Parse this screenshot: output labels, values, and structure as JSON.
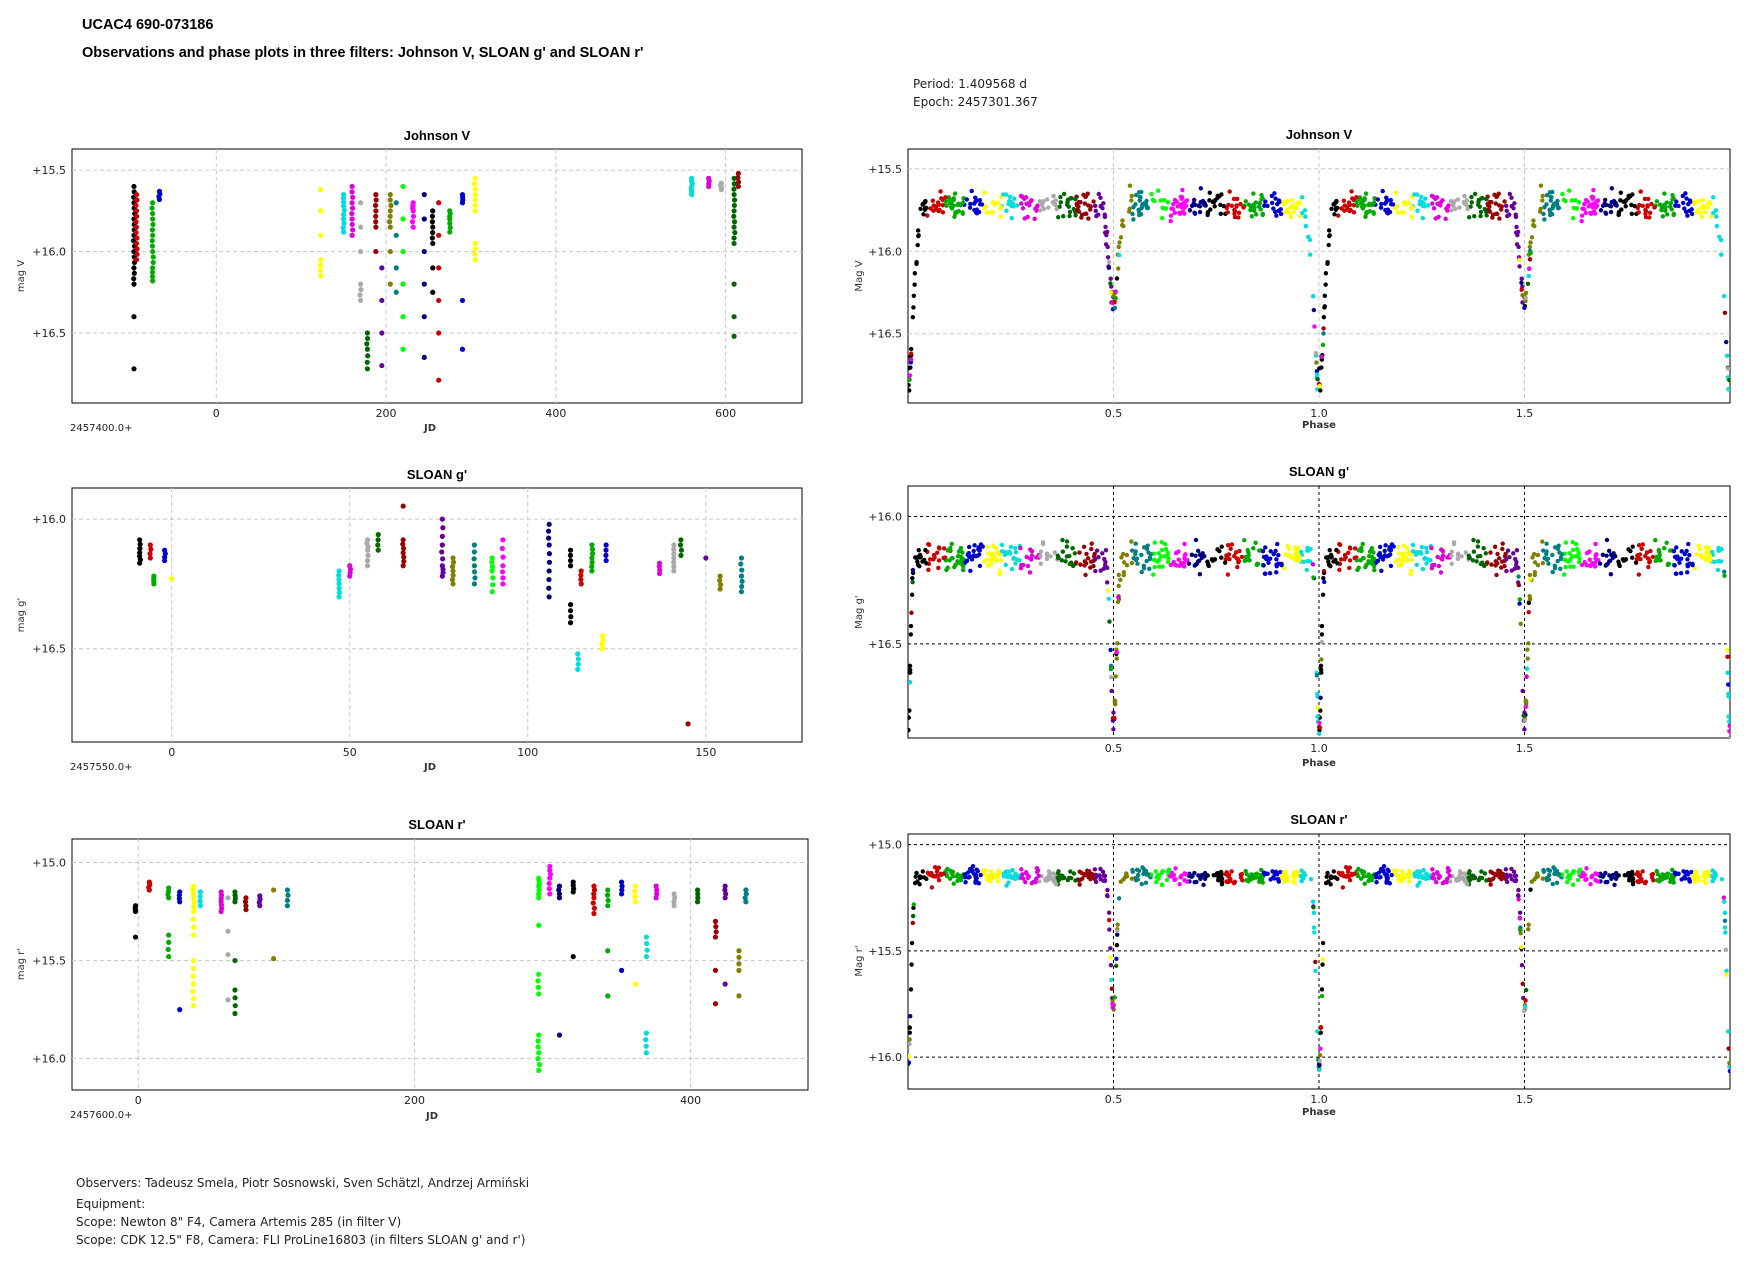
{
  "header": {
    "title": "UCAC4 690-073186",
    "subtitle": "Observations and phase plots in three filters: Johnson V, SLOAN g' and SLOAN r'"
  },
  "phase_info": {
    "period": "Period: 1.409568 d",
    "epoch": "Epoch: 2457301.367"
  },
  "footer": {
    "observers": "Observers: Tadeusz Smela, Piotr Sosnowski, Sven Schätzl, Andrzej Armiński",
    "equipment": "Equipment:",
    "scope1": "Scope: Newton 8\" F4, Camera Artemis 285  (in filter V)",
    "scope2": "Scope: CDK 12.5\" F8, Camera: FLI ProLine16803 (in filters SLOAN g' and r')"
  },
  "colors": {
    "palette": [
      "#000000",
      "#cc0000",
      "#00aa00",
      "#0000cc",
      "#ffff00",
      "#00dddd",
      "#dd00dd",
      "#aaaaaa",
      "#006600",
      "#990000",
      "#660099",
      "#808000",
      "#008080",
      "#00ff00",
      "#ff00ff",
      "#000080"
    ],
    "frame": "#000000",
    "grid": "#c8c8c8",
    "phase_grid": "#000000"
  },
  "chart_data": [
    {
      "id": "jd-v",
      "type": "scatter",
      "title": "Johnson V",
      "xlabel": "JD",
      "ylabel": "mag V",
      "x_offset_label": "2457400.0+",
      "xlim": [
        -170,
        690
      ],
      "ylim": [
        16.93,
        15.37
      ],
      "xticks": [
        0,
        200,
        400,
        600
      ],
      "yticks": [
        15.5,
        16.0,
        16.5
      ],
      "ytick_labels": [
        "+15.5",
        "+16.0",
        "+16.5"
      ],
      "series": [
        {
          "x": -97,
          "mag": [
            15.6,
            15.7,
            15.8,
            15.9,
            16.0,
            16.1,
            16.2,
            16.4,
            16.72
          ]
        },
        {
          "x": -94,
          "mag": [
            15.65,
            15.75,
            15.85,
            15.95,
            16.05
          ]
        },
        {
          "x": -75,
          "mag": [
            15.7,
            15.8,
            15.9,
            16.0,
            16.1,
            16.18
          ]
        },
        {
          "x": -67,
          "mag": [
            15.63,
            15.68
          ]
        },
        {
          "x": 123,
          "mag": [
            15.62,
            15.75,
            15.9,
            16.05,
            16.15
          ]
        },
        {
          "x": 150,
          "mag": [
            15.65,
            15.72,
            15.8,
            15.88
          ]
        },
        {
          "x": 160,
          "mag": [
            15.6,
            15.7,
            15.8,
            15.9
          ]
        },
        {
          "x": 170,
          "mag": [
            15.7,
            15.85,
            16.0,
            16.2,
            16.3
          ]
        },
        {
          "x": 178,
          "mag": [
            16.5,
            16.6,
            16.72
          ]
        },
        {
          "x": 188,
          "mag": [
            15.65,
            15.75,
            15.85,
            16.0
          ]
        },
        {
          "x": 195,
          "mag": [
            16.1,
            16.3,
            16.5,
            16.7
          ]
        },
        {
          "x": 205,
          "mag": [
            15.65,
            15.75,
            15.85,
            16.0,
            16.2
          ]
        },
        {
          "x": 212,
          "mag": [
            15.7,
            15.9,
            16.1,
            16.25
          ]
        },
        {
          "x": 220,
          "mag": [
            15.6,
            15.8,
            16.0,
            16.2,
            16.4,
            16.6
          ]
        },
        {
          "x": 232,
          "mag": [
            15.7,
            15.75,
            15.85
          ]
        },
        {
          "x": 245,
          "mag": [
            15.65,
            15.8,
            16.0,
            16.2,
            16.4,
            16.65
          ]
        },
        {
          "x": 255,
          "mag": [
            15.75,
            15.85,
            15.95,
            16.1,
            16.25
          ]
        },
        {
          "x": 262,
          "mag": [
            15.7,
            15.9,
            16.1,
            16.3,
            16.5,
            16.79
          ]
        },
        {
          "x": 275,
          "mag": [
            15.75,
            15.8,
            15.88
          ]
        },
        {
          "x": 290,
          "mag": [
            15.65,
            15.7,
            16.3,
            16.6
          ]
        },
        {
          "x": 305,
          "mag": [
            15.55,
            15.65,
            15.75,
            15.95,
            16.05
          ]
        },
        {
          "x": 560,
          "mag": [
            15.55,
            15.6,
            15.65
          ]
        },
        {
          "x": 580,
          "mag": [
            15.55,
            15.6
          ]
        },
        {
          "x": 595,
          "mag": [
            15.58,
            15.62
          ]
        },
        {
          "x": 610,
          "mag": [
            15.55,
            15.65,
            15.75,
            15.85,
            15.95,
            16.2,
            16.4,
            16.52
          ]
        },
        {
          "x": 615,
          "mag": [
            15.52,
            15.6
          ]
        }
      ]
    },
    {
      "id": "ph-v",
      "type": "scatter",
      "title": "Johnson  V",
      "xlabel": "Phase",
      "ylabel": "Mag V",
      "xlim": [
        0.0,
        2.0
      ],
      "ylim": [
        16.92,
        15.38
      ],
      "xticks": [
        0.5,
        1.0,
        1.5
      ],
      "xtick_labels": [
        "0.5",
        "1.0",
        "1.5"
      ],
      "yticks": [
        15.5,
        16.0,
        16.5
      ],
      "ytick_labels": [
        "+15.5",
        "+16.0",
        "+16.5"
      ],
      "model": {
        "base": 15.72,
        "primary_min": 16.8,
        "secondary_min": 16.32,
        "primary_width": 0.018,
        "secondary_width": 0.016,
        "scatter": 0.08
      }
    },
    {
      "id": "jd-g",
      "type": "scatter",
      "title": "SLOAN g'",
      "xlabel": "JD",
      "ylabel": "mag g'",
      "x_offset_label": "2457550.0+",
      "xlim": [
        -28,
        177
      ],
      "ylim": [
        16.86,
        15.88
      ],
      "xticks": [
        0,
        50,
        100,
        150
      ],
      "yticks": [
        16.0,
        16.5
      ],
      "ytick_labels": [
        "+16.0",
        "+16.5"
      ],
      "series": [
        {
          "x": -9,
          "mag": [
            16.08,
            16.13,
            16.17
          ]
        },
        {
          "x": -6,
          "mag": [
            16.1,
            16.15
          ]
        },
        {
          "x": -5,
          "mag": [
            16.22,
            16.25
          ]
        },
        {
          "x": -2,
          "mag": [
            16.12,
            16.16
          ]
        },
        {
          "x": 0,
          "mag": [
            16.23
          ]
        },
        {
          "x": 47,
          "mag": [
            16.2,
            16.25,
            16.3
          ]
        },
        {
          "x": 50,
          "mag": [
            16.18,
            16.22
          ]
        },
        {
          "x": 55,
          "mag": [
            16.08,
            16.12,
            16.18
          ]
        },
        {
          "x": 58,
          "mag": [
            16.06,
            16.12
          ]
        },
        {
          "x": 65,
          "mag": [
            15.95,
            16.08,
            16.13,
            16.18
          ]
        },
        {
          "x": 76,
          "mag": [
            16.0,
            16.1,
            16.18,
            16.22
          ]
        },
        {
          "x": 79,
          "mag": [
            16.15,
            16.2,
            16.25
          ]
        },
        {
          "x": 85,
          "mag": [
            16.1,
            16.18,
            16.25
          ]
        },
        {
          "x": 90,
          "mag": [
            16.15,
            16.2,
            16.28
          ]
        },
        {
          "x": 93,
          "mag": [
            16.08,
            16.18,
            16.25
          ]
        },
        {
          "x": 106,
          "mag": [
            16.02,
            16.1,
            16.2,
            16.3
          ]
        },
        {
          "x": 112,
          "mag": [
            16.12,
            16.18,
            16.33,
            16.4
          ]
        },
        {
          "x": 115,
          "mag": [
            16.2,
            16.25
          ]
        },
        {
          "x": 118,
          "mag": [
            16.1,
            16.15,
            16.2
          ]
        },
        {
          "x": 122,
          "mag": [
            16.1,
            16.16
          ]
        },
        {
          "x": 121,
          "mag": [
            16.45,
            16.5
          ]
        },
        {
          "x": 114,
          "mag": [
            16.52,
            16.58
          ]
        },
        {
          "x": 137,
          "mag": [
            16.17,
            16.21
          ]
        },
        {
          "x": 141,
          "mag": [
            16.1,
            16.15,
            16.2
          ]
        },
        {
          "x": 143,
          "mag": [
            16.08,
            16.14
          ]
        },
        {
          "x": 145,
          "mag": [
            16.79
          ]
        },
        {
          "x": 150,
          "mag": [
            16.15
          ]
        },
        {
          "x": 154,
          "mag": [
            16.22,
            16.27
          ]
        },
        {
          "x": 160,
          "mag": [
            16.15,
            16.22,
            16.28
          ]
        }
      ]
    },
    {
      "id": "ph-g",
      "type": "scatter",
      "title": "SLOAN  g'",
      "xlabel": "Phase",
      "ylabel": "Mag  g'",
      "xlim": [
        0.0,
        2.0
      ],
      "ylim": [
        16.87,
        15.88
      ],
      "xticks": [
        0.5,
        1.0,
        1.5
      ],
      "xtick_labels": [
        "0.5",
        "1.0",
        "1.5"
      ],
      "yticks": [
        16.0,
        16.5
      ],
      "ytick_labels": [
        "+16.0",
        "+16.5"
      ],
      "model": {
        "base": 16.16,
        "primary_min": 16.85,
        "secondary_min": 16.8,
        "primary_width": 0.008,
        "secondary_width": 0.01,
        "scatter": 0.06
      }
    },
    {
      "id": "jd-r",
      "type": "scatter",
      "title": "SLOAN r'",
      "xlabel": "JD",
      "ylabel": "mag r'",
      "x_offset_label": "2457600.0+",
      "xlim": [
        -48,
        485
      ],
      "ylim": [
        16.16,
        14.88
      ],
      "xticks": [
        0,
        200,
        400
      ],
      "yticks": [
        15.0,
        15.5,
        16.0
      ],
      "ytick_labels": [
        "+15.0",
        "+15.5",
        "+16.0"
      ],
      "series": [
        {
          "x": -2,
          "mag": [
            15.22,
            15.25,
            15.38
          ]
        },
        {
          "x": 8,
          "mag": [
            15.1,
            15.14
          ]
        },
        {
          "x": 22,
          "mag": [
            15.13,
            15.18,
            15.37,
            15.48
          ]
        },
        {
          "x": 30,
          "mag": [
            15.15,
            15.2,
            15.75
          ]
        },
        {
          "x": 40,
          "mag": [
            15.12,
            15.18,
            15.25,
            15.37,
            15.5,
            15.62,
            15.73
          ]
        },
        {
          "x": 45,
          "mag": [
            15.15,
            15.22
          ]
        },
        {
          "x": 60,
          "mag": [
            15.15,
            15.2,
            15.25
          ]
        },
        {
          "x": 65,
          "mag": [
            15.18,
            15.35,
            15.47,
            15.7
          ]
        },
        {
          "x": 70,
          "mag": [
            15.15,
            15.2,
            15.5,
            15.65,
            15.77
          ]
        },
        {
          "x": 78,
          "mag": [
            15.18,
            15.24
          ]
        },
        {
          "x": 88,
          "mag": [
            15.17,
            15.22
          ]
        },
        {
          "x": 98,
          "mag": [
            15.14,
            15.49
          ]
        },
        {
          "x": 108,
          "mag": [
            15.14,
            15.22
          ]
        },
        {
          "x": 290,
          "mag": [
            15.08,
            15.12,
            15.18,
            15.32,
            15.57,
            15.67,
            15.88,
            15.97,
            16.06
          ]
        },
        {
          "x": 298,
          "mag": [
            15.02,
            15.08,
            15.16
          ]
        },
        {
          "x": 305,
          "mag": [
            15.12,
            15.18,
            15.88
          ]
        },
        {
          "x": 315,
          "mag": [
            15.1,
            15.15,
            15.48
          ]
        },
        {
          "x": 330,
          "mag": [
            15.12,
            15.18,
            15.26
          ]
        },
        {
          "x": 340,
          "mag": [
            15.14,
            15.22,
            15.45,
            15.68
          ]
        },
        {
          "x": 350,
          "mag": [
            15.1,
            15.16,
            15.55
          ]
        },
        {
          "x": 360,
          "mag": [
            15.12,
            15.2,
            15.62
          ]
        },
        {
          "x": 368,
          "mag": [
            15.38,
            15.48,
            15.87,
            15.97
          ]
        },
        {
          "x": 375,
          "mag": [
            15.12,
            15.18
          ]
        },
        {
          "x": 388,
          "mag": [
            15.16,
            15.22
          ]
        },
        {
          "x": 405,
          "mag": [
            15.14,
            15.2
          ]
        },
        {
          "x": 418,
          "mag": [
            15.3,
            15.38,
            15.55,
            15.72
          ]
        },
        {
          "x": 425,
          "mag": [
            15.12,
            15.18,
            15.62
          ]
        },
        {
          "x": 435,
          "mag": [
            15.45,
            15.55,
            15.68
          ]
        },
        {
          "x": 440,
          "mag": [
            15.14,
            15.2
          ]
        }
      ]
    },
    {
      "id": "ph-r",
      "type": "scatter",
      "title": "SLOAN  r'",
      "xlabel": "Phase",
      "ylabel": "Mag  r'",
      "xlim": [
        0.0,
        2.0
      ],
      "ylim": [
        16.15,
        14.95
      ],
      "xticks": [
        0.5,
        1.0,
        1.5
      ],
      "xtick_labels": [
        "0.5",
        "1.0",
        "1.5"
      ],
      "yticks": [
        15.0,
        15.5,
        16.0
      ],
      "ytick_labels": [
        "+15.0",
        "+15.5",
        "+16.0"
      ],
      "model": {
        "base": 15.15,
        "primary_min": 16.05,
        "secondary_min": 15.78,
        "primary_width": 0.01,
        "secondary_width": 0.01,
        "scatter": 0.035
      }
    }
  ]
}
